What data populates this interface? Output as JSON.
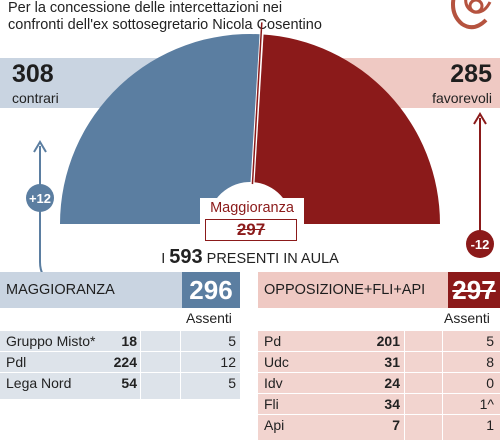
{
  "subtitle": "Per la concessione delle intercettazioni nei confronti dell'ex sottosegretario Nicola Cosentino",
  "contrari": {
    "value": "308",
    "label": "contrari"
  },
  "favorevoli": {
    "value": "285",
    "label": "favorevoli"
  },
  "maggioranza_vote": {
    "label": "Maggioranza",
    "value": "297"
  },
  "presenti": {
    "prefix": "I",
    "value": "593",
    "suffix": "PRESENTI IN AULA"
  },
  "arrow_left": "+12",
  "arrow_right": "-12",
  "colors": {
    "blue": "#5b7ea1",
    "red": "#8b1a1a",
    "light_blue": "#c9d4e1",
    "light_red": "#efc9c3"
  },
  "maggioranza": {
    "title": "MAGGIORANZA",
    "total": "296",
    "assenti_label": "Assenti",
    "rows": [
      {
        "name": "Gruppo Misto*",
        "value": "18",
        "assenti": "5"
      },
      {
        "name": "Pdl",
        "value": "224",
        "assenti": "12"
      },
      {
        "name": "Lega Nord",
        "value": "54",
        "assenti": "5"
      }
    ]
  },
  "opposizione": {
    "title": "OPPOSIZIONE+FLI+API",
    "total": "297",
    "assenti_label": "Assenti",
    "rows": [
      {
        "name": "Pd",
        "value": "201",
        "assenti": "5"
      },
      {
        "name": "Udc",
        "value": "31",
        "assenti": "8"
      },
      {
        "name": "Idv",
        "value": "24",
        "assenti": "0"
      },
      {
        "name": "Fli",
        "value": "34",
        "assenti": "1^"
      },
      {
        "name": "Api",
        "value": "7",
        "assenti": "1"
      }
    ]
  },
  "chart_data": {
    "type": "pie",
    "categories": [
      "contrari",
      "favorevoli"
    ],
    "values": [
      308,
      285
    ],
    "total": 593
  }
}
